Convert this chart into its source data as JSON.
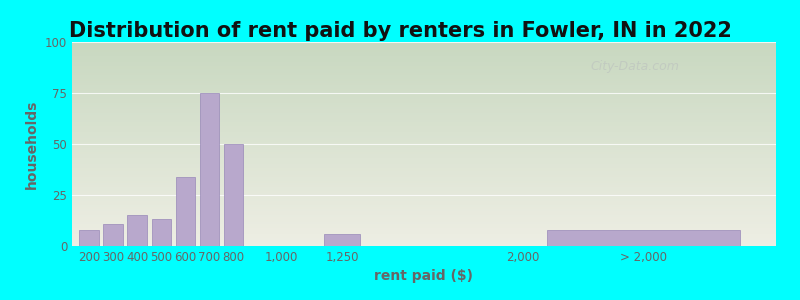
{
  "title": "Distribution of rent paid by renters in Fowler, IN in 2022",
  "xlabel": "rent paid ($)",
  "ylabel": "households",
  "background_outer": "#00FFFF",
  "bar_color": "#b8a8cc",
  "bar_edge_color": "#9888b8",
  "ylim": [
    0,
    100
  ],
  "yticks": [
    0,
    25,
    50,
    75,
    100
  ],
  "categories": [
    "200",
    "300",
    "400",
    "500",
    "600",
    "700",
    "800",
    "1,000",
    "1,250",
    "2,000",
    "> 2,000"
  ],
  "values": [
    8,
    11,
    15,
    13,
    34,
    75,
    50,
    0,
    6,
    0,
    8
  ],
  "title_fontsize": 15,
  "label_fontsize": 10,
  "tick_fontsize": 8.5,
  "title_color": "#111111",
  "axis_color": "#666666",
  "watermark": "City-Data.com",
  "grad_top": "#c8d8c0",
  "grad_bottom": "#eeeee4",
  "x_positions": [
    200,
    300,
    400,
    500,
    600,
    700,
    800,
    1000,
    1250,
    2000,
    2500
  ],
  "bar_widths": [
    80,
    80,
    80,
    80,
    80,
    80,
    80,
    150,
    150,
    200,
    800
  ],
  "xlim_min": 130,
  "xlim_max": 3050
}
